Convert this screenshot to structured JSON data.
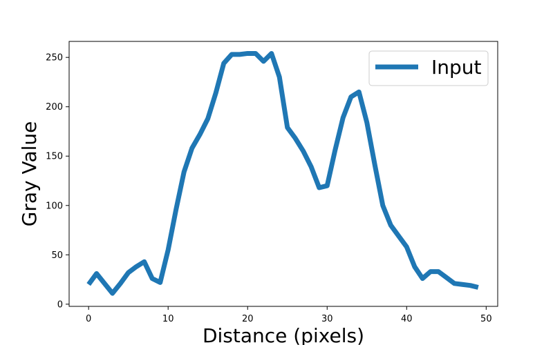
{
  "chart_data": {
    "type": "line",
    "title": "",
    "xlabel": "Distance (pixels)",
    "ylabel": "Gray Value",
    "xlim": [
      -2.45,
      51.45
    ],
    "ylim": [
      -2.2,
      266.2
    ],
    "xticks": [
      0,
      10,
      20,
      30,
      40,
      50
    ],
    "yticks": [
      0,
      50,
      100,
      150,
      200,
      250
    ],
    "grid": false,
    "legend_position": "top-right",
    "series": [
      {
        "name": "Input",
        "color": "#1f77b4",
        "x": [
          0,
          1,
          2,
          3,
          4,
          5,
          6,
          7,
          8,
          9,
          10,
          11,
          12,
          13,
          14,
          15,
          16,
          17,
          18,
          19,
          20,
          21,
          22,
          23,
          24,
          25,
          26,
          27,
          28,
          29,
          30,
          31,
          32,
          33,
          34,
          35,
          36,
          37,
          38,
          39,
          40,
          41,
          42,
          43,
          44,
          45,
          46,
          47,
          48,
          49
        ],
        "y": [
          20,
          31,
          21,
          11,
          21,
          32,
          38,
          43,
          26,
          22,
          55,
          96,
          134,
          158,
          172,
          188,
          214,
          244,
          253,
          253,
          254,
          254,
          246,
          254,
          230,
          179,
          168,
          155,
          139,
          118,
          120,
          156,
          189,
          210,
          215,
          184,
          141,
          100,
          80,
          69,
          58,
          38,
          26,
          33,
          33,
          27,
          21,
          20,
          19,
          17
        ]
      }
    ]
  }
}
